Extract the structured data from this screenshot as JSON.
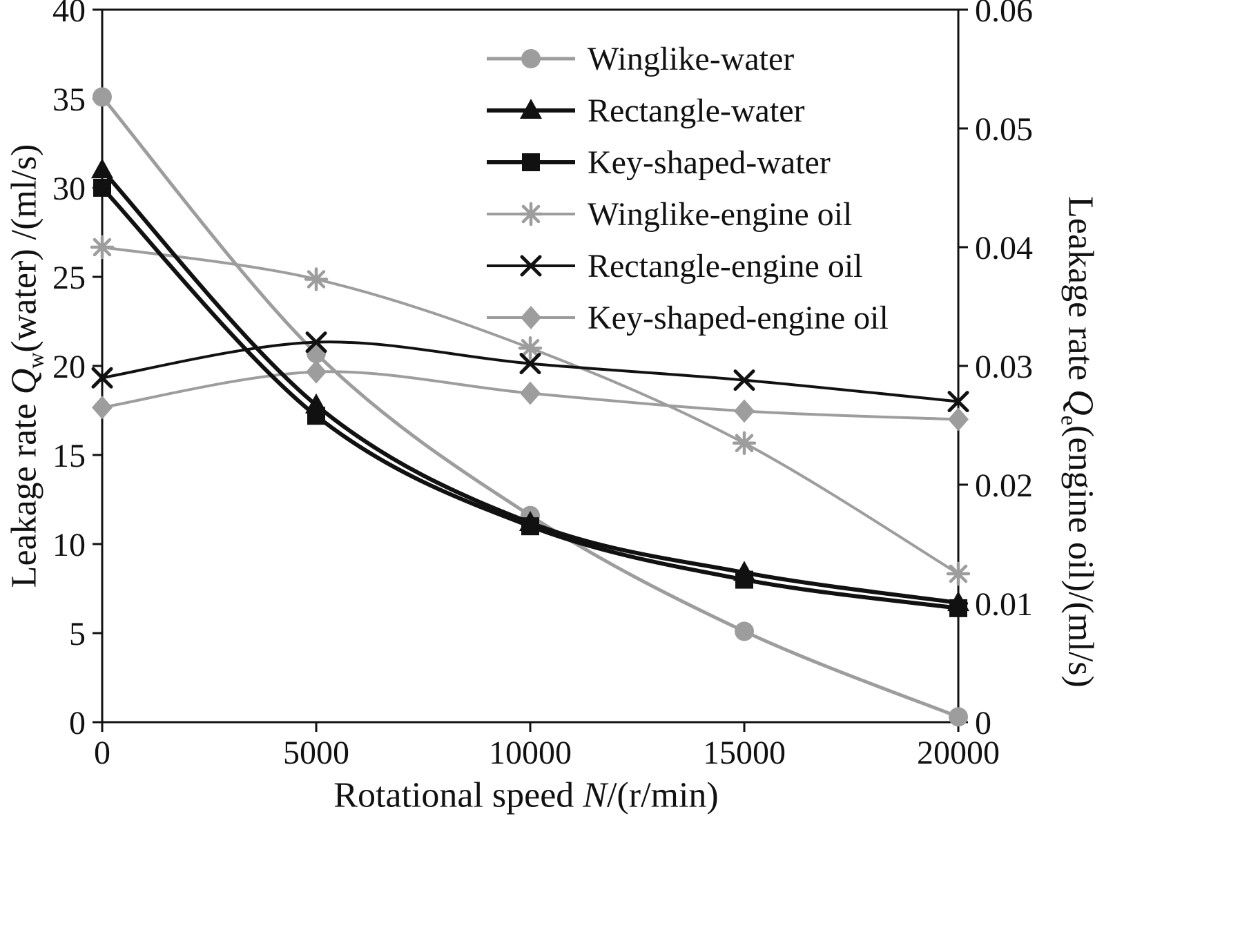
{
  "chart_data": {
    "type": "line",
    "title": "",
    "grid": false,
    "legend_position": "inside-top-right",
    "axes": {
      "x": {
        "label_parts": {
          "pre": "Rotational speed ",
          "var": "N",
          "post": "/(r/min)"
        },
        "range": [
          0,
          20000
        ],
        "ticks": [
          0,
          5000,
          10000,
          15000,
          20000
        ],
        "tick_labels": [
          "0",
          "5000",
          "10000",
          "15000",
          "20000"
        ]
      },
      "y_left": {
        "label_parts": {
          "pre": "Leakage rate ",
          "var": "Q",
          "sub": "w",
          "post": "(water) /(ml/s)"
        },
        "range": [
          0,
          40
        ],
        "ticks": [
          0,
          5,
          10,
          15,
          20,
          25,
          30,
          35,
          40
        ],
        "tick_labels": [
          "0",
          "5",
          "10",
          "15",
          "20",
          "25",
          "30",
          "35",
          "40"
        ]
      },
      "y_right": {
        "label_parts": {
          "pre": "Leakage rate ",
          "var": "Q",
          "sub": "e",
          "post": "(engine oil)/(ml/s)"
        },
        "range": [
          0,
          0.06
        ],
        "ticks": [
          0,
          0.01,
          0.02,
          0.03,
          0.04,
          0.05,
          0.06
        ],
        "tick_labels": [
          "0",
          "0.01",
          "0.02",
          "0.03",
          "0.04",
          "0.05",
          "0.06"
        ]
      }
    },
    "x": [
      0,
      5000,
      10000,
      15000,
      20000
    ],
    "series": [
      {
        "name": "Winglike-water",
        "axis": "left",
        "marker": "circle",
        "color": "#9d9d9d",
        "line_width": 5,
        "values": [
          35.1,
          20.7,
          11.6,
          5.1,
          0.3
        ]
      },
      {
        "name": "Rectangle-water",
        "axis": "left",
        "marker": "triangle",
        "color": "#111111",
        "line_width": 6,
        "values": [
          31.0,
          17.8,
          11.2,
          8.4,
          6.7
        ]
      },
      {
        "name": "Key-shaped-water",
        "axis": "left",
        "marker": "square",
        "color": "#111111",
        "line_width": 6,
        "values": [
          30.0,
          17.2,
          11.0,
          8.0,
          6.4
        ]
      },
      {
        "name": "Winglike-engine oil",
        "axis": "right",
        "marker": "asterisk",
        "color": "#9d9d9d",
        "line_width": 4,
        "values": [
          0.04,
          0.0373,
          0.0315,
          0.0235,
          0.0125
        ]
      },
      {
        "name": "Rectangle-engine oil",
        "axis": "right",
        "marker": "x",
        "color": "#111111",
        "line_width": 4,
        "values": [
          0.029,
          0.032,
          0.0302,
          0.0288,
          0.027
        ]
      },
      {
        "name": "Key-shaped-engine oil",
        "axis": "right",
        "marker": "diamond",
        "color": "#9d9d9d",
        "line_width": 4,
        "values": [
          0.0265,
          0.0295,
          0.0277,
          0.0262,
          0.0255
        ]
      }
    ],
    "colors": {
      "black": "#111111",
      "gray": "#9d9d9d",
      "background": "#ffffff"
    }
  }
}
